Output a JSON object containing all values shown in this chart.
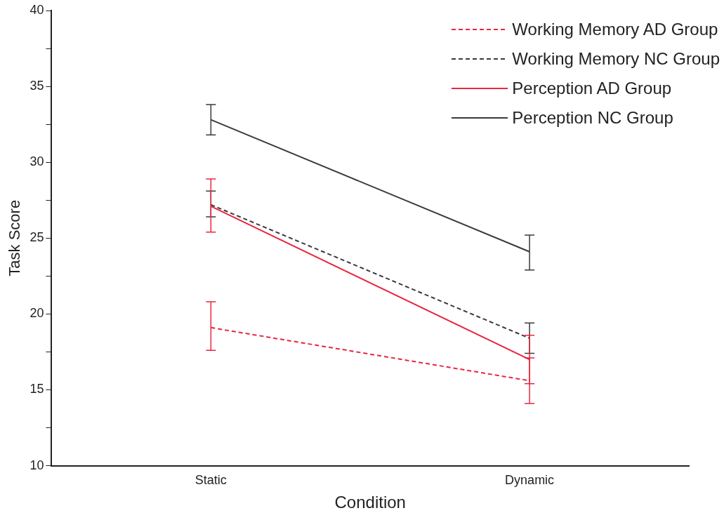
{
  "chart_data": {
    "type": "line",
    "xlabel": "Condition",
    "ylabel": "Task Score",
    "categories": [
      "Static",
      "Dynamic"
    ],
    "series": [
      {
        "name": "Working Memory AD Group",
        "color": "#e8263e",
        "line_style": "dashed",
        "values": [
          19.1,
          15.6
        ],
        "errors": [
          [
            17.6,
            20.8
          ],
          [
            14.1,
            17.1
          ]
        ]
      },
      {
        "name": "Working Memory NC Group",
        "color": "#3a3a3a",
        "line_style": "dashed",
        "values": [
          27.2,
          18.4
        ],
        "errors": [
          [
            26.4,
            28.1
          ],
          [
            17.4,
            19.4
          ]
        ]
      },
      {
        "name": "Perception AD Group",
        "color": "#e8263e",
        "line_style": "solid",
        "values": [
          27.1,
          17.0
        ],
        "errors": [
          [
            25.4,
            28.9
          ],
          [
            15.4,
            18.6
          ]
        ]
      },
      {
        "name": "Perception NC Group",
        "color": "#3a3a3a",
        "line_style": "solid",
        "values": [
          32.8,
          24.1
        ],
        "errors": [
          [
            31.8,
            33.8
          ],
          [
            22.9,
            25.2
          ]
        ]
      }
    ],
    "ylim": [
      10,
      40
    ],
    "yticks": [
      10,
      {
        "value": 12.5,
        "label": null
      },
      15,
      {
        "value": 17.5,
        "label": null
      },
      20,
      {
        "value": 22.5,
        "label": null
      },
      25,
      {
        "value": 27.5,
        "label": null
      },
      30,
      {
        "value": 32.5,
        "label": null
      },
      35,
      {
        "value": 37.5,
        "label": null
      },
      40
    ],
    "grid": false,
    "legend": "top right",
    "marker": "none"
  }
}
